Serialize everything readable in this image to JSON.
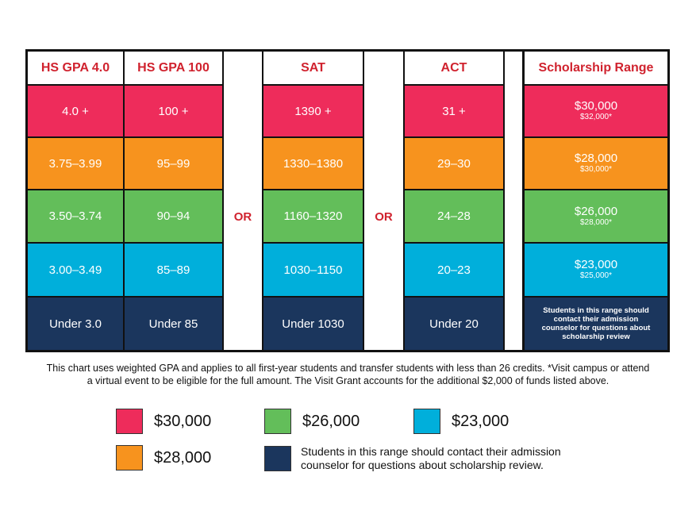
{
  "chart_data": {
    "type": "table",
    "headers": {
      "gpa4": "HS GPA 4.0",
      "gpa100": "HS GPA 100",
      "sat": "SAT",
      "act": "ACT",
      "scholarship": "Scholarship Range"
    },
    "or_label": "OR",
    "rows": [
      {
        "gpa4": "4.0 +",
        "gpa100": "100 +",
        "sat": "1390 +",
        "act": "31 +",
        "amount": "$30,000",
        "visit_amount": "$32,000*",
        "color": "#ee2c5b"
      },
      {
        "gpa4": "3.75–3.99",
        "gpa100": "95–99",
        "sat": "1330–1380",
        "act": "29–30",
        "amount": "$28,000",
        "visit_amount": "$30,000*",
        "color": "#f7931e"
      },
      {
        "gpa4": "3.50–3.74",
        "gpa100": "90–94",
        "sat": "1160–1320",
        "act": "24–28",
        "amount": "$26,000",
        "visit_amount": "$28,000*",
        "color": "#63be5a"
      },
      {
        "gpa4": "3.00–3.49",
        "gpa100": "85–89",
        "sat": "1030–1150",
        "act": "20–23",
        "amount": "$23,000",
        "visit_amount": "$25,000*",
        "color": "#00afdb"
      },
      {
        "gpa4": "Under 3.0",
        "gpa100": "Under 85",
        "sat": "Under 1030",
        "act": "Under 20",
        "note": "Students in this range should contact their admission counselor for questions about scholarship review",
        "color": "#1b365d"
      }
    ],
    "footnote_line1": "This chart uses weighted GPA and applies to all first-year students and transfer students with less than 26 credits. *Visit campus or attend",
    "footnote_line2": "a virtual event to be eligible for the full amount. The Visit Grant accounts for the additional $2,000 of funds listed above.",
    "legend": [
      {
        "label": "$30,000",
        "color": "#ee2c5b"
      },
      {
        "label": "$26,000",
        "color": "#63be5a"
      },
      {
        "label": "$23,000",
        "color": "#00afdb"
      },
      {
        "label": "$28,000",
        "color": "#f7931e"
      },
      {
        "label_line1": "Students in this range should contact their admission",
        "label_line2": "counselor for questions about scholarship review.",
        "color": "#1b365d"
      }
    ]
  }
}
